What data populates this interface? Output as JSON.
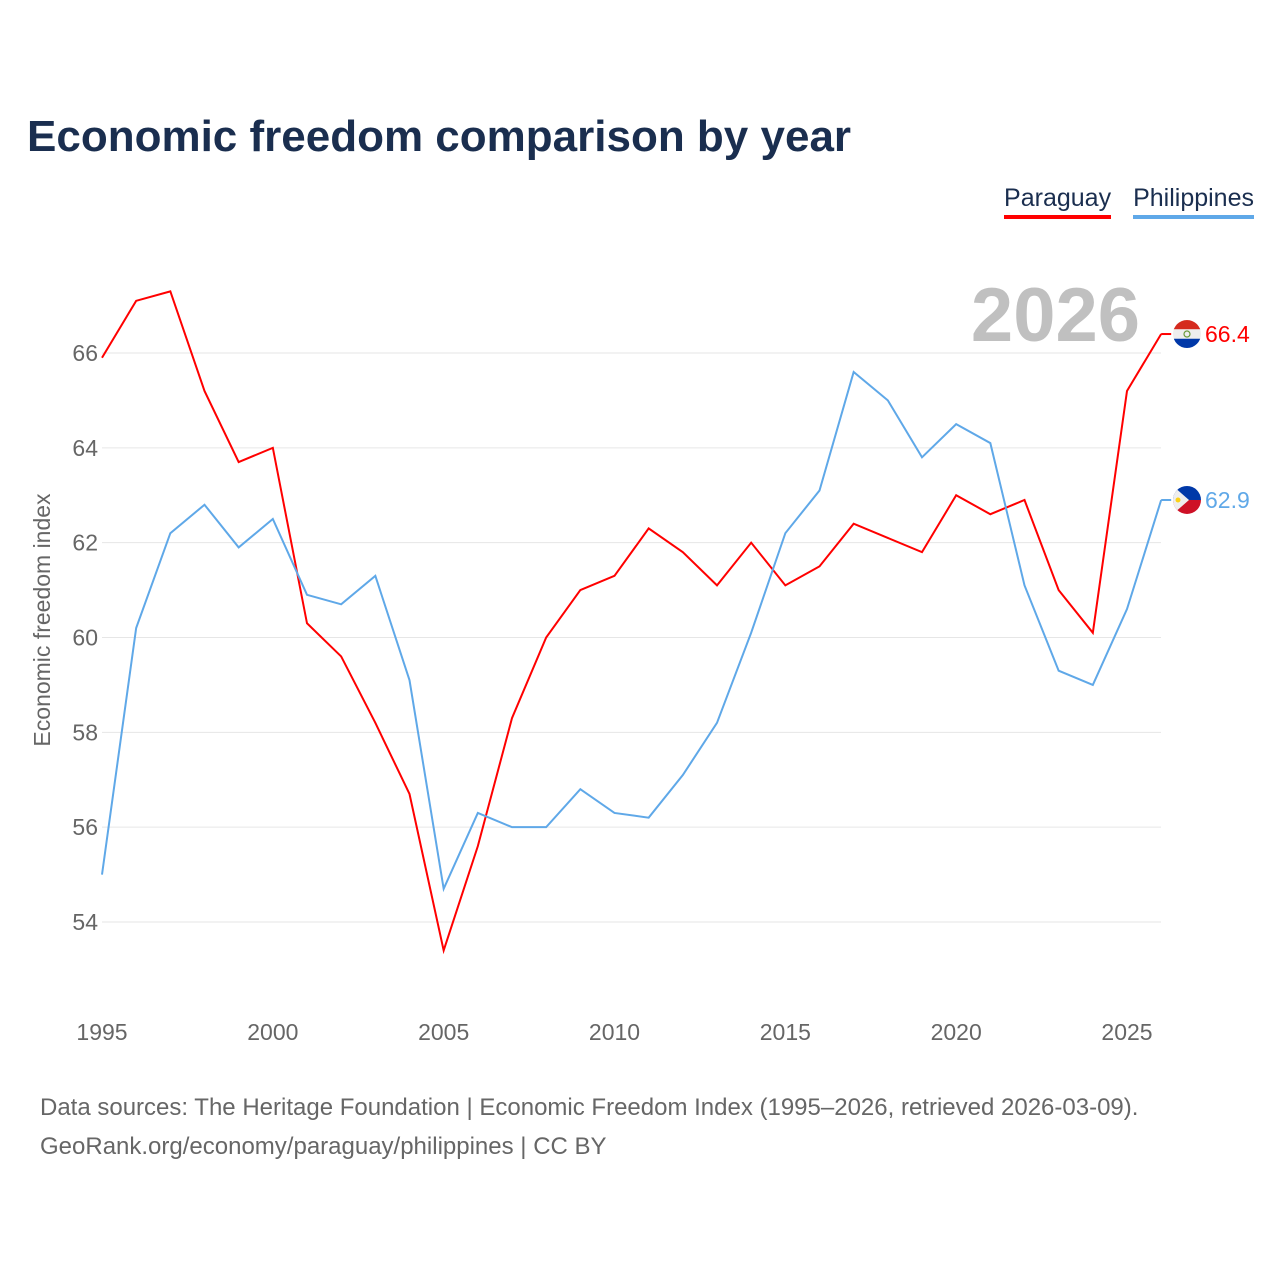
{
  "chart_data": {
    "type": "line",
    "title": "Economic freedom comparison by year",
    "ylabel": "Economic freedom index",
    "xlabel": "",
    "year_label": "2026",
    "ylim": [
      52,
      68
    ],
    "xlim": [
      1995,
      2026
    ],
    "yticks": [
      54,
      56,
      58,
      60,
      62,
      64,
      66
    ],
    "xticks": [
      1995,
      2000,
      2005,
      2010,
      2015,
      2020,
      2025
    ],
    "grid": true,
    "legend_position": "top-right",
    "x": [
      1995,
      1996,
      1997,
      1998,
      1999,
      2000,
      2001,
      2002,
      2003,
      2004,
      2005,
      2006,
      2007,
      2008,
      2009,
      2010,
      2011,
      2012,
      2013,
      2014,
      2015,
      2016,
      2017,
      2018,
      2019,
      2020,
      2021,
      2022,
      2023,
      2024,
      2025,
      2026
    ],
    "series": [
      {
        "name": "Paraguay",
        "color": "#ff0000",
        "end_label": "66.4",
        "values": [
          65.9,
          67.1,
          67.3,
          65.2,
          63.7,
          64.0,
          60.3,
          59.6,
          58.2,
          56.7,
          53.4,
          55.6,
          58.3,
          60.0,
          61.0,
          61.3,
          62.3,
          61.8,
          61.1,
          62.0,
          61.1,
          61.5,
          62.4,
          62.1,
          61.8,
          63.0,
          62.6,
          62.9,
          61.0,
          60.1,
          65.2,
          66.4
        ]
      },
      {
        "name": "Philippines",
        "color": "#5fa8e8",
        "end_label": "62.9",
        "values": [
          55.0,
          60.2,
          62.2,
          62.8,
          61.9,
          62.5,
          60.9,
          60.7,
          61.3,
          59.1,
          54.7,
          56.3,
          56.0,
          56.0,
          56.8,
          56.3,
          56.2,
          57.1,
          58.2,
          60.1,
          62.2,
          63.1,
          65.6,
          65.0,
          63.8,
          64.5,
          64.1,
          61.1,
          59.3,
          59.0,
          60.6,
          62.9
        ]
      }
    ]
  },
  "footer": {
    "line1": "Data sources: The Heritage Foundation | Economic Freedom Index (1995–2026, retrieved 2026-03-09).",
    "line2": "GeoRank.org/economy/paraguay/philippines | CC BY"
  }
}
